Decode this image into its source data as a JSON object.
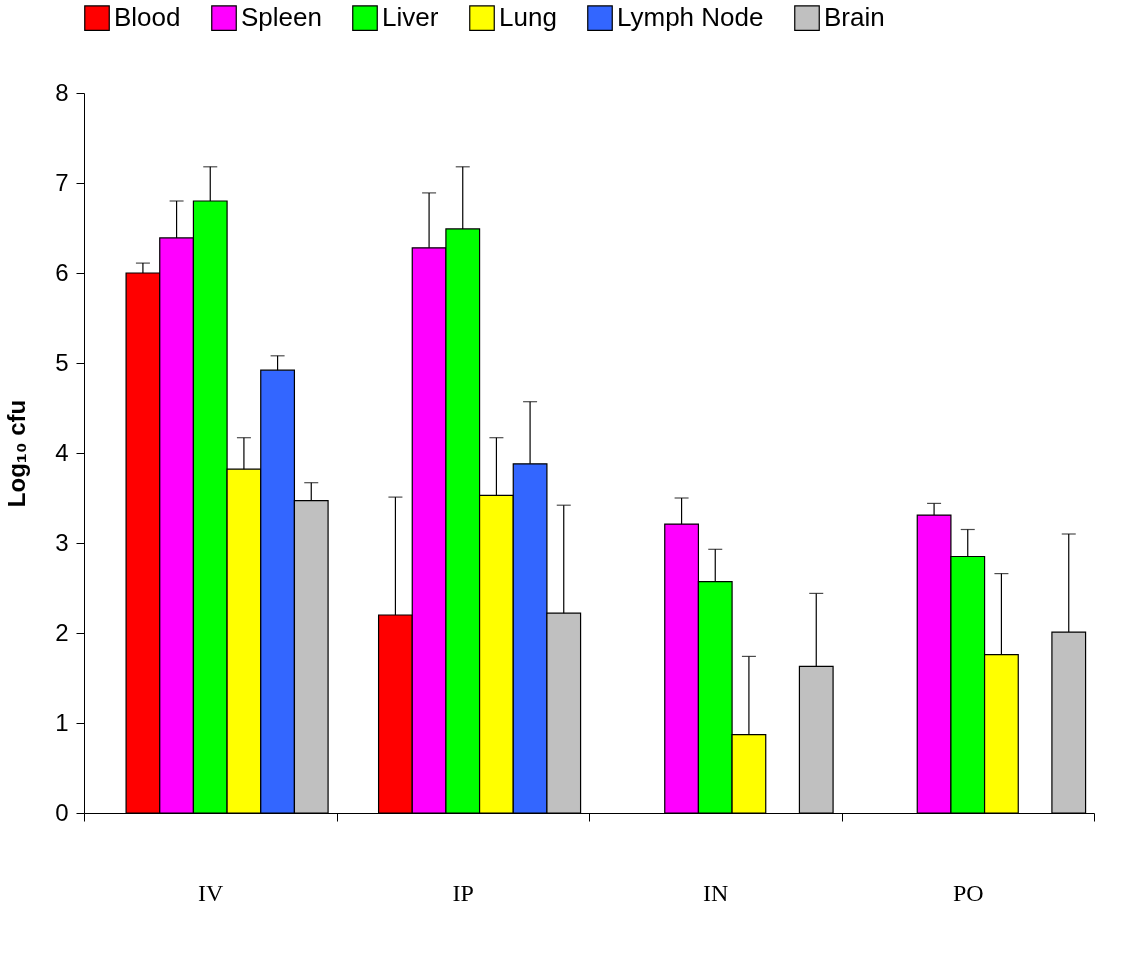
{
  "chart_data": {
    "type": "bar",
    "ylabel": "Log₁₀ cfu",
    "categories": [
      "IV",
      "IP",
      "IN",
      "PO"
    ],
    "ylim": [
      0,
      8
    ],
    "yticks": [
      0,
      1,
      2,
      3,
      4,
      5,
      6,
      7,
      8
    ],
    "grid": false,
    "legend": "top",
    "series": [
      {
        "name": "Blood",
        "color": "#ff0000",
        "values": [
          6.0,
          2.2,
          null,
          null
        ],
        "errors": [
          [
            6.0,
            6.11
          ],
          [
            2.2,
            3.51
          ],
          null,
          null
        ]
      },
      {
        "name": "Spleen",
        "color": "#ff00ff",
        "values": [
          6.39,
          6.28,
          3.21,
          3.31
        ],
        "errors": [
          [
            6.39,
            6.8
          ],
          [
            6.28,
            6.89
          ],
          [
            3.21,
            3.5
          ],
          [
            3.31,
            3.44
          ]
        ]
      },
      {
        "name": "Liver",
        "color": "#00ff00",
        "values": [
          6.8,
          6.49,
          2.57,
          2.85
        ],
        "errors": [
          [
            6.8,
            7.18
          ],
          [
            6.49,
            7.18
          ],
          [
            2.57,
            2.93
          ],
          [
            2.85,
            3.15
          ]
        ]
      },
      {
        "name": "Lung",
        "color": "#ffff00",
        "values": [
          3.82,
          3.53,
          0.87,
          1.76
        ],
        "errors": [
          [
            3.82,
            4.17
          ],
          [
            3.53,
            4.17
          ],
          [
            0.87,
            1.74
          ],
          [
            1.76,
            2.66
          ]
        ]
      },
      {
        "name": "Lymph Node",
        "color": "#3366ff",
        "values": [
          4.92,
          3.88,
          null,
          null
        ],
        "errors": [
          [
            4.92,
            5.08
          ],
          [
            3.88,
            4.57
          ],
          null,
          null
        ]
      },
      {
        "name": "Brain",
        "color": "#c0c0c0",
        "values": [
          3.47,
          2.22,
          1.63,
          2.01
        ],
        "errors": [
          [
            3.47,
            3.67
          ],
          [
            2.22,
            3.42
          ],
          [
            1.63,
            2.44
          ],
          [
            2.01,
            3.1
          ]
        ]
      }
    ]
  }
}
